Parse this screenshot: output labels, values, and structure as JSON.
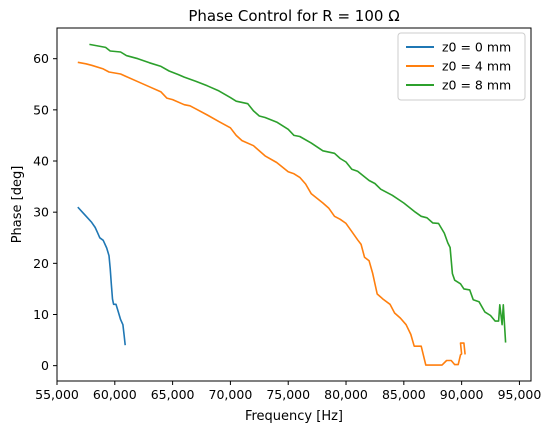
{
  "chart_data": {
    "type": "line",
    "title": "Phase Control for R = 100 Ω",
    "xlabel": "Frequency [Hz]",
    "ylabel": "Phase [deg]",
    "xlim": [
      55000,
      96000
    ],
    "ylim": [
      -3,
      66
    ],
    "x_ticks": [
      55000,
      60000,
      65000,
      70000,
      75000,
      80000,
      85000,
      90000,
      95000
    ],
    "x_tick_labels": [
      "55,000",
      "60,000",
      "65,000",
      "70,000",
      "75,000",
      "80,000",
      "85,000",
      "90,000",
      "95,000"
    ],
    "y_ticks": [
      0,
      10,
      20,
      30,
      40,
      50,
      60
    ],
    "y_tick_labels": [
      "0",
      "10",
      "20",
      "30",
      "40",
      "50",
      "60"
    ],
    "grid": false,
    "legend_position": "top-right",
    "series": [
      {
        "name": "z0 = 0 mm",
        "color": "#1f77b4",
        "points": [
          [
            56800,
            31.0
          ],
          [
            57200,
            30.0
          ],
          [
            57600,
            29.0
          ],
          [
            58000,
            28.0
          ],
          [
            58300,
            27.0
          ],
          [
            58500,
            26.0
          ],
          [
            58700,
            25.0
          ],
          [
            59000,
            24.5
          ],
          [
            59300,
            23.0
          ],
          [
            59500,
            21.5
          ],
          [
            59600,
            19.0
          ],
          [
            59700,
            16.0
          ],
          [
            59800,
            13.0
          ],
          [
            59900,
            12.0
          ],
          [
            60100,
            12.0
          ],
          [
            60300,
            10.5
          ],
          [
            60500,
            9.0
          ],
          [
            60700,
            8.0
          ],
          [
            60800,
            6.0
          ],
          [
            60900,
            4.0
          ]
        ]
      },
      {
        "name": "z0 = 4 mm",
        "color": "#ff7f0e",
        "points": [
          [
            56800,
            59.3
          ],
          [
            57500,
            59.0
          ],
          [
            58000,
            58.7
          ],
          [
            59000,
            58.0
          ],
          [
            59500,
            57.4
          ],
          [
            60500,
            57.0
          ],
          [
            61000,
            56.5
          ],
          [
            62000,
            55.5
          ],
          [
            63000,
            54.5
          ],
          [
            64000,
            53.5
          ],
          [
            64500,
            52.3
          ],
          [
            65000,
            52.0
          ],
          [
            66000,
            51.0
          ],
          [
            66500,
            50.8
          ],
          [
            67000,
            50.2
          ],
          [
            68000,
            49.0
          ],
          [
            69000,
            47.7
          ],
          [
            70000,
            46.5
          ],
          [
            70500,
            45.0
          ],
          [
            71000,
            44.0
          ],
          [
            72000,
            43.0
          ],
          [
            73000,
            41.0
          ],
          [
            74000,
            39.7
          ],
          [
            75000,
            37.9
          ],
          [
            75500,
            37.5
          ],
          [
            76000,
            36.8
          ],
          [
            76500,
            35.5
          ],
          [
            77000,
            33.6
          ],
          [
            78000,
            31.8
          ],
          [
            78500,
            30.8
          ],
          [
            79000,
            29.2
          ],
          [
            79500,
            28.6
          ],
          [
            80000,
            27.8
          ],
          [
            80500,
            26.2
          ],
          [
            81000,
            24.6
          ],
          [
            81300,
            23.7
          ],
          [
            81600,
            21.2
          ],
          [
            82000,
            20.5
          ],
          [
            82300,
            18.1
          ],
          [
            82700,
            14.0
          ],
          [
            83200,
            13.0
          ],
          [
            83800,
            12.0
          ],
          [
            84200,
            10.3
          ],
          [
            84700,
            9.3
          ],
          [
            85200,
            8.0
          ],
          [
            85600,
            6.1
          ],
          [
            85900,
            3.8
          ],
          [
            86500,
            3.8
          ],
          [
            86900,
            0.1
          ],
          [
            87500,
            0.1
          ],
          [
            88300,
            0.1
          ],
          [
            88700,
            1.0
          ],
          [
            89100,
            1.0
          ],
          [
            89400,
            0.2
          ],
          [
            89700,
            0.2
          ],
          [
            89900,
            2.1
          ],
          [
            90000,
            2.3
          ],
          [
            89900,
            4.4
          ],
          [
            90200,
            4.4
          ],
          [
            90300,
            2.2
          ]
        ]
      },
      {
        "name": "z0 = 8 mm",
        "color": "#2ca02c",
        "points": [
          [
            57800,
            62.8
          ],
          [
            58500,
            62.5
          ],
          [
            59200,
            62.2
          ],
          [
            59600,
            61.5
          ],
          [
            60500,
            61.3
          ],
          [
            61000,
            60.6
          ],
          [
            62000,
            60.0
          ],
          [
            63000,
            59.2
          ],
          [
            64000,
            58.5
          ],
          [
            64700,
            57.6
          ],
          [
            65500,
            56.9
          ],
          [
            66000,
            56.4
          ],
          [
            67000,
            55.6
          ],
          [
            68000,
            54.7
          ],
          [
            69000,
            53.7
          ],
          [
            70000,
            52.4
          ],
          [
            70500,
            51.7
          ],
          [
            71500,
            51.2
          ],
          [
            72000,
            49.8
          ],
          [
            72500,
            48.8
          ],
          [
            73000,
            48.5
          ],
          [
            74000,
            47.6
          ],
          [
            75000,
            46.2
          ],
          [
            75500,
            45.0
          ],
          [
            76000,
            44.8
          ],
          [
            77000,
            43.5
          ],
          [
            78000,
            42.0
          ],
          [
            79000,
            41.5
          ],
          [
            79500,
            40.5
          ],
          [
            80000,
            39.8
          ],
          [
            80500,
            38.4
          ],
          [
            81000,
            38.0
          ],
          [
            82000,
            36.2
          ],
          [
            82500,
            35.6
          ],
          [
            83000,
            34.5
          ],
          [
            84000,
            33.3
          ],
          [
            85000,
            31.8
          ],
          [
            86000,
            30.0
          ],
          [
            86500,
            29.2
          ],
          [
            87000,
            28.9
          ],
          [
            87500,
            27.9
          ],
          [
            88000,
            27.8
          ],
          [
            88500,
            25.9
          ],
          [
            88800,
            24.0
          ],
          [
            89000,
            23.1
          ],
          [
            89200,
            18.0
          ],
          [
            89400,
            16.7
          ],
          [
            89900,
            16.0
          ],
          [
            90200,
            15.0
          ],
          [
            90700,
            14.8
          ],
          [
            91000,
            12.9
          ],
          [
            91500,
            12.5
          ],
          [
            92000,
            10.5
          ],
          [
            92500,
            9.8
          ],
          [
            92900,
            8.7
          ],
          [
            93200,
            8.7
          ],
          [
            93300,
            11.9
          ],
          [
            93500,
            8.0
          ],
          [
            93600,
            11.9
          ],
          [
            93800,
            4.5
          ]
        ]
      }
    ]
  }
}
